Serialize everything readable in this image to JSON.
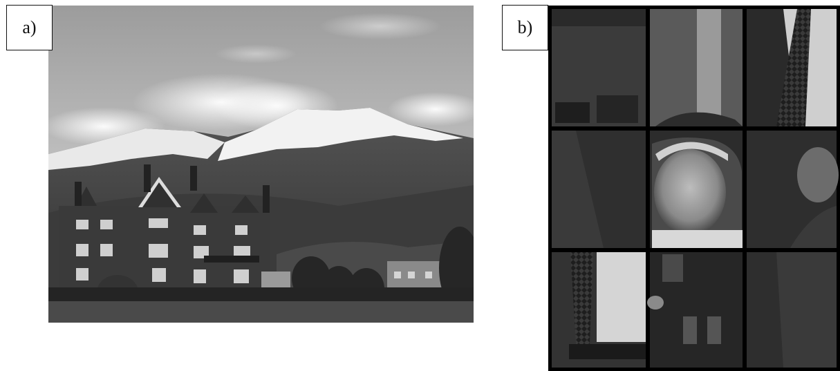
{
  "panels": [
    {
      "label": "a)",
      "content": "photo-landscape-victorian-houses-snowy-mountain"
    },
    {
      "label": "b)",
      "content": "photo-3x3-tile-grid-man-portrait"
    }
  ],
  "grid": {
    "rows": 3,
    "cols": 3
  }
}
